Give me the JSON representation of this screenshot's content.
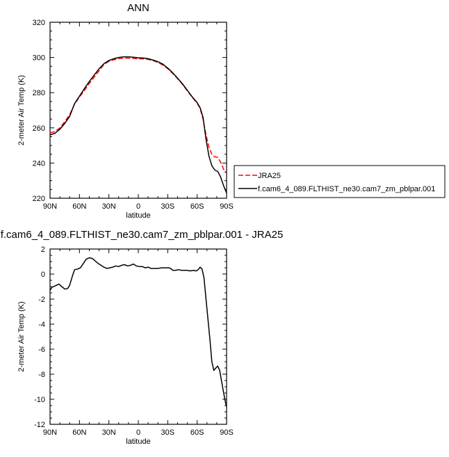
{
  "chart_data": [
    {
      "type": "line",
      "title": "ANN",
      "xlabel": "latitude",
      "ylabel": "2-meter Air Temp (K)",
      "xlim": [
        90,
        -90
      ],
      "ylim": [
        220,
        320
      ],
      "x_tick_values": [
        90,
        60,
        30,
        0,
        -30,
        -60,
        -90
      ],
      "x_tick_labels": [
        "90N",
        "60N",
        "30N",
        "0",
        "30S",
        "60S",
        "90S"
      ],
      "y_tick_values": [
        220,
        240,
        260,
        280,
        300,
        320
      ],
      "y_tick_labels": [
        "220",
        "240",
        "260",
        "280",
        "300",
        "320"
      ],
      "grid": false,
      "legend_position": "right of plot",
      "series": [
        {
          "name": "JRA25",
          "color": "#ff0000",
          "dash": "dashed",
          "points": [
            [
              90,
              257.2
            ],
            [
              85,
              257.9
            ],
            [
              80,
              260.0
            ],
            [
              75,
              263.5
            ],
            [
              70,
              267.5
            ],
            [
              65,
              273.5
            ],
            [
              60,
              277.5
            ],
            [
              55,
              281.2
            ],
            [
              50,
              285.2
            ],
            [
              45,
              288.8
            ],
            [
              40,
              292.5
            ],
            [
              35,
              296.0
            ],
            [
              30,
              297.8
            ],
            [
              25,
              298.7
            ],
            [
              20,
              299.3
            ],
            [
              15,
              299.6
            ],
            [
              10,
              299.6
            ],
            [
              5,
              299.4
            ],
            [
              0,
              299.2
            ],
            [
              -5,
              299.2
            ],
            [
              -10,
              298.9
            ],
            [
              -15,
              298.2
            ],
            [
              -20,
              297.2
            ],
            [
              -25,
              295.7
            ],
            [
              -30,
              293.6
            ],
            [
              -35,
              291.0
            ],
            [
              -40,
              288.0
            ],
            [
              -45,
              284.7
            ],
            [
              -50,
              281.0
            ],
            [
              -55,
              277.3
            ],
            [
              -60,
              274.0
            ],
            [
              -63,
              271.0
            ],
            [
              -66,
              265.0
            ],
            [
              -69,
              256.0
            ],
            [
              -72,
              249.0
            ],
            [
              -75,
              245.0
            ],
            [
              -78,
              243.5
            ],
            [
              -81,
              243.2
            ],
            [
              -84,
              240.5
            ],
            [
              -87,
              236.5
            ],
            [
              -90,
              234.0
            ]
          ]
        },
        {
          "name": "f.cam6_4_089.FLTHIST_ne30.cam7_zm_pblpar.001",
          "color": "#000000",
          "dash": "solid",
          "points": [
            [
              90,
              256.0
            ],
            [
              85,
              256.9
            ],
            [
              80,
              259.2
            ],
            [
              75,
              262.5
            ],
            [
              70,
              266.5
            ],
            [
              65,
              273.8
            ],
            [
              60,
              278.0
            ],
            [
              55,
              282.3
            ],
            [
              50,
              286.3
            ],
            [
              45,
              290.0
            ],
            [
              40,
              293.6
            ],
            [
              35,
              296.5
            ],
            [
              30,
              298.3
            ],
            [
              25,
              299.3
            ],
            [
              20,
              300.0
            ],
            [
              15,
              300.3
            ],
            [
              10,
              300.3
            ],
            [
              5,
              300.1
            ],
            [
              0,
              299.8
            ],
            [
              -5,
              299.7
            ],
            [
              -10,
              299.3
            ],
            [
              -15,
              298.5
            ],
            [
              -20,
              297.6
            ],
            [
              -25,
              296.2
            ],
            [
              -30,
              294.0
            ],
            [
              -35,
              291.3
            ],
            [
              -40,
              288.3
            ],
            [
              -45,
              285.0
            ],
            [
              -50,
              281.3
            ],
            [
              -55,
              277.6
            ],
            [
              -60,
              274.3
            ],
            [
              -63,
              271.5
            ],
            [
              -66,
              266.0
            ],
            [
              -69,
              253.5
            ],
            [
              -72,
              244.0
            ],
            [
              -75,
              238.5
            ],
            [
              -78,
              236.0
            ],
            [
              -81,
              235.2
            ],
            [
              -84,
              232.0
            ],
            [
              -87,
              227.0
            ],
            [
              -90,
              223.0
            ]
          ]
        }
      ]
    },
    {
      "type": "line",
      "title": "f.cam6_4_089.FLTHIST_ne30.cam7_zm_pblpar.001 - JRA25",
      "xlabel": "latitude",
      "ylabel": "2-meter Air Temp (K)",
      "xlim": [
        90,
        -90
      ],
      "ylim": [
        -12,
        2
      ],
      "x_tick_values": [
        90,
        60,
        30,
        0,
        -30,
        -60,
        -90
      ],
      "x_tick_labels": [
        "90N",
        "60N",
        "30N",
        "0",
        "30S",
        "60S",
        "90S"
      ],
      "y_tick_values": [
        -12,
        -10,
        -8,
        -6,
        -4,
        -2,
        0,
        2
      ],
      "y_tick_labels": [
        "-12",
        "-10",
        "-8",
        "-6",
        "-4",
        "-2",
        "0",
        "2"
      ],
      "grid": false,
      "series": [
        {
          "color": "#000000",
          "dash": "solid",
          "points": [
            [
              90,
              -1.3
            ],
            [
              88,
              -1.05
            ],
            [
              85,
              -0.95
            ],
            [
              81,
              -0.8
            ],
            [
              78,
              -1.0
            ],
            [
              75,
              -1.2
            ],
            [
              72,
              -1.15
            ],
            [
              70,
              -0.9
            ],
            [
              67,
              -0.1
            ],
            [
              65,
              0.35
            ],
            [
              62,
              0.4
            ],
            [
              59,
              0.5
            ],
            [
              56,
              0.85
            ],
            [
              53,
              1.2
            ],
            [
              50,
              1.3
            ],
            [
              47,
              1.25
            ],
            [
              44,
              1.05
            ],
            [
              41,
              0.85
            ],
            [
              38,
              0.7
            ],
            [
              35,
              0.55
            ],
            [
              32,
              0.45
            ],
            [
              29,
              0.5
            ],
            [
              26,
              0.55
            ],
            [
              23,
              0.65
            ],
            [
              20,
              0.6
            ],
            [
              17,
              0.7
            ],
            [
              14,
              0.75
            ],
            [
              11,
              0.65
            ],
            [
              8,
              0.7
            ],
            [
              5,
              0.8
            ],
            [
              2,
              0.65
            ],
            [
              -1,
              0.6
            ],
            [
              -4,
              0.6
            ],
            [
              -7,
              0.5
            ],
            [
              -10,
              0.55
            ],
            [
              -13,
              0.45
            ],
            [
              -16,
              0.45
            ],
            [
              -20,
              0.45
            ],
            [
              -24,
              0.5
            ],
            [
              -28,
              0.5
            ],
            [
              -31,
              0.5
            ],
            [
              -33,
              0.45
            ],
            [
              -35,
              0.3
            ],
            [
              -38,
              0.3
            ],
            [
              -41,
              0.35
            ],
            [
              -44,
              0.3
            ],
            [
              -47,
              0.3
            ],
            [
              -50,
              0.3
            ],
            [
              -53,
              0.25
            ],
            [
              -56,
              0.3
            ],
            [
              -59,
              0.25
            ],
            [
              -61,
              0.35
            ],
            [
              -63,
              0.55
            ],
            [
              -65,
              0.4
            ],
            [
              -67,
              -0.3
            ],
            [
              -69,
              -2.0
            ],
            [
              -71,
              -3.6
            ],
            [
              -73,
              -5.2
            ],
            [
              -75,
              -7.0
            ],
            [
              -77,
              -7.7
            ],
            [
              -79,
              -7.5
            ],
            [
              -81,
              -7.35
            ],
            [
              -83,
              -7.7
            ],
            [
              -85,
              -8.6
            ],
            [
              -87,
              -9.5
            ],
            [
              -89,
              -10.3
            ],
            [
              -90,
              -10.6
            ]
          ]
        }
      ]
    }
  ]
}
